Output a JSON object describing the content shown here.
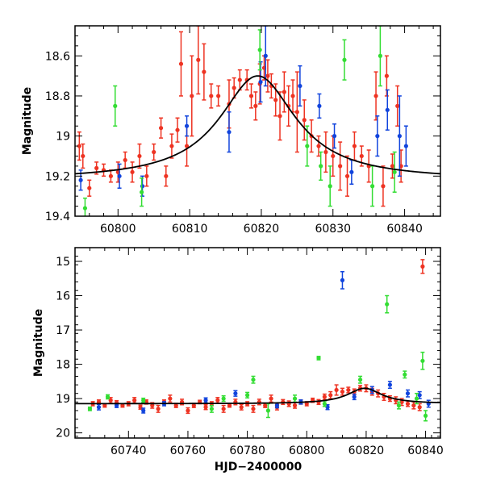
{
  "chart_data": [
    {
      "type": "scatter",
      "panel": "top",
      "xlabel": "",
      "ylabel": "Magnitude",
      "xlim": [
        60794,
        60845
      ],
      "ylim": [
        19.4,
        18.45
      ],
      "y_inverted": true,
      "xticks": [
        60800,
        60810,
        60820,
        60830,
        60840
      ],
      "yticks": [
        18.6,
        18.8,
        19,
        19.2,
        19.4
      ],
      "ytick_labels": [
        "18.6",
        "18.8",
        "19",
        "19.2",
        "19.4"
      ],
      "model_curve": {
        "type": "lorentzian",
        "peak_x": 60819.5,
        "peak_mag": 18.7,
        "baseline_mag": 19.22,
        "width_days": 6.5,
        "color": "#000000"
      },
      "series": [
        {
          "color": "#ee3322",
          "points": [
            [
              60794.6,
              19.05,
              0.07
            ],
            [
              60795.1,
              19.1,
              0.06
            ],
            [
              60796.0,
              19.26,
              0.04
            ],
            [
              60797.0,
              19.16,
              0.03
            ],
            [
              60798.0,
              19.17,
              0.03
            ],
            [
              60799.0,
              19.2,
              0.03
            ],
            [
              60800.0,
              19.18,
              0.05
            ],
            [
              60801.0,
              19.12,
              0.04
            ],
            [
              60802.0,
              19.18,
              0.05
            ],
            [
              60803.0,
              19.1,
              0.06
            ],
            [
              60804.0,
              19.2,
              0.05
            ],
            [
              60805.0,
              19.08,
              0.04
            ],
            [
              60806.0,
              18.96,
              0.05
            ],
            [
              60806.7,
              19.2,
              0.05
            ],
            [
              60807.5,
              19.05,
              0.06
            ],
            [
              60808.3,
              18.97,
              0.06
            ],
            [
              60808.8,
              18.64,
              0.16
            ],
            [
              60809.6,
              19.05,
              0.1
            ],
            [
              60810.3,
              18.8,
              0.2
            ],
            [
              60811.2,
              18.62,
              0.17
            ],
            [
              60812.0,
              18.68,
              0.14
            ],
            [
              60813.0,
              18.8,
              0.06
            ],
            [
              60814.0,
              18.8,
              0.05
            ],
            [
              60815.5,
              18.84,
              0.12
            ],
            [
              60816.2,
              18.76,
              0.05
            ],
            [
              60817.0,
              18.72,
              0.05
            ],
            [
              60818.0,
              18.72,
              0.05
            ],
            [
              60818.6,
              18.8,
              0.06
            ],
            [
              60819.2,
              18.85,
              0.07
            ],
            [
              60819.8,
              18.74,
              0.1
            ],
            [
              60820.4,
              18.66,
              0.06
            ],
            [
              60820.9,
              18.7,
              0.08
            ],
            [
              60821.4,
              18.75,
              0.06
            ],
            [
              60822.0,
              18.82,
              0.08
            ],
            [
              60822.6,
              18.9,
              0.12
            ],
            [
              60823.2,
              18.78,
              0.1
            ],
            [
              60823.8,
              18.85,
              0.1
            ],
            [
              60824.4,
              18.8,
              0.08
            ],
            [
              60825.0,
              18.88,
              0.2
            ],
            [
              60826.0,
              18.92,
              0.1
            ],
            [
              60827.0,
              19.0,
              0.08
            ],
            [
              60828.0,
              19.05,
              0.05
            ],
            [
              60829.0,
              19.08,
              0.1
            ],
            [
              60830.0,
              19.1,
              0.1
            ],
            [
              60831.0,
              19.15,
              0.12
            ],
            [
              60832.0,
              19.2,
              0.1
            ],
            [
              60833.0,
              19.05,
              0.07
            ],
            [
              60834.0,
              19.1,
              0.05
            ],
            [
              60835.0,
              19.15,
              0.08
            ],
            [
              60836.0,
              18.8,
              0.12
            ],
            [
              60837.0,
              19.25,
              0.1
            ],
            [
              60837.5,
              18.7,
              0.1
            ],
            [
              60838.3,
              19.15,
              0.06
            ],
            [
              60839.0,
              18.85,
              0.1
            ],
            [
              60839.5,
              19.15,
              0.08
            ]
          ]
        },
        {
          "color": "#1144dd",
          "points": [
            [
              60794.8,
              19.22,
              0.05
            ],
            [
              60800.2,
              19.2,
              0.06
            ],
            [
              60803.4,
              19.25,
              0.05
            ],
            [
              60809.6,
              18.95,
              0.05
            ],
            [
              60815.5,
              18.98,
              0.1
            ],
            [
              60819.9,
              18.73,
              0.1
            ],
            [
              60820.6,
              18.6,
              0.15
            ],
            [
              60825.4,
              18.75,
              0.1
            ],
            [
              60828.1,
              18.85,
              0.06
            ],
            [
              60830.2,
              19.0,
              0.06
            ],
            [
              60832.6,
              19.18,
              0.06
            ],
            [
              60836.2,
              19.0,
              0.1
            ],
            [
              60837.6,
              18.87,
              0.1
            ],
            [
              60839.3,
              19.0,
              0.2
            ],
            [
              60840.2,
              19.05,
              0.1
            ]
          ]
        },
        {
          "color": "#33dd33",
          "points": [
            [
              60795.4,
              19.36,
              0.05
            ],
            [
              60799.6,
              18.85,
              0.1
            ],
            [
              60803.3,
              19.28,
              0.07
            ],
            [
              60819.8,
              18.57,
              0.1
            ],
            [
              60826.4,
              19.05,
              0.1
            ],
            [
              60828.3,
              19.15,
              0.07
            ],
            [
              60829.6,
              19.25,
              0.1
            ],
            [
              60831.6,
              18.62,
              0.1
            ],
            [
              60835.5,
              19.25,
              0.1
            ],
            [
              60836.6,
              18.6,
              0.15
            ],
            [
              60838.6,
              19.18,
              0.1
            ]
          ]
        }
      ]
    },
    {
      "type": "scatter",
      "panel": "bottom",
      "xlabel": "HJD−2400000",
      "ylabel": "Magnitude",
      "xlim": [
        60722,
        60845
      ],
      "ylim": [
        20.15,
        14.6
      ],
      "y_inverted": true,
      "xticks": [
        60740,
        60760,
        60780,
        60800,
        60820,
        60840
      ],
      "yticks": [
        15,
        16,
        17,
        18,
        19,
        20
      ],
      "ytick_labels": [
        "15",
        "16",
        "17",
        "18",
        "19",
        "20"
      ],
      "model_curve": {
        "type": "lorentzian",
        "peak_x": 60819.5,
        "peak_mag": 18.7,
        "baseline_mag": 19.15,
        "width_days": 7,
        "color": "#000000"
      },
      "series": [
        {
          "color": "#ee3322",
          "points": [
            [
              60728,
              19.15,
              0.06
            ],
            [
              60730,
              19.1,
              0.06
            ],
            [
              60732,
              19.2,
              0.05
            ],
            [
              60734,
              19.05,
              0.08
            ],
            [
              60736,
              19.12,
              0.06
            ],
            [
              60738,
              19.2,
              0.05
            ],
            [
              60740,
              19.15,
              0.06
            ],
            [
              60742,
              19.05,
              0.08
            ],
            [
              60744,
              19.25,
              0.06
            ],
            [
              60746,
              19.1,
              0.06
            ],
            [
              60748,
              19.2,
              0.08
            ],
            [
              60750,
              19.3,
              0.1
            ],
            [
              60752,
              19.1,
              0.06
            ],
            [
              60754,
              19.0,
              0.1
            ],
            [
              60756,
              19.2,
              0.06
            ],
            [
              60758,
              19.1,
              0.08
            ],
            [
              60760,
              19.35,
              0.08
            ],
            [
              60762,
              19.2,
              0.06
            ],
            [
              60764,
              19.1,
              0.05
            ],
            [
              60766,
              19.25,
              0.07
            ],
            [
              60768,
              19.15,
              0.06
            ],
            [
              60770,
              19.05,
              0.08
            ],
            [
              60772,
              19.3,
              0.1
            ],
            [
              60774,
              19.2,
              0.05
            ],
            [
              60776,
              19.1,
              0.08
            ],
            [
              60778,
              19.25,
              0.08
            ],
            [
              60780,
              19.15,
              0.06
            ],
            [
              60782,
              19.3,
              0.1
            ],
            [
              60784,
              19.1,
              0.08
            ],
            [
              60786,
              19.2,
              0.06
            ],
            [
              60788,
              19.0,
              0.1
            ],
            [
              60790,
              19.25,
              0.08
            ],
            [
              60792,
              19.1,
              0.07
            ],
            [
              60794,
              19.15,
              0.08
            ],
            [
              60796,
              19.2,
              0.08
            ],
            [
              60798,
              19.1,
              0.06
            ],
            [
              60800,
              19.15,
              0.06
            ],
            [
              60802,
              19.05,
              0.06
            ],
            [
              60804,
              19.1,
              0.07
            ],
            [
              60806,
              18.95,
              0.08
            ],
            [
              60808,
              18.9,
              0.1
            ],
            [
              60810,
              18.75,
              0.15
            ],
            [
              60812,
              18.8,
              0.1
            ],
            [
              60814,
              18.75,
              0.08
            ],
            [
              60816,
              18.8,
              0.08
            ],
            [
              60818,
              18.7,
              0.08
            ],
            [
              60820,
              18.7,
              0.1
            ],
            [
              60822,
              18.8,
              0.1
            ],
            [
              60824,
              18.85,
              0.1
            ],
            [
              60826,
              18.95,
              0.1
            ],
            [
              60828,
              19.0,
              0.08
            ],
            [
              60830,
              19.05,
              0.1
            ],
            [
              60832,
              19.1,
              0.1
            ],
            [
              60834,
              19.15,
              0.08
            ],
            [
              60836,
              19.2,
              0.1
            ],
            [
              60838,
              19.25,
              0.1
            ],
            [
              60839,
              15.15,
              0.2
            ]
          ]
        },
        {
          "color": "#1144dd",
          "points": [
            [
              60730,
              19.25,
              0.08
            ],
            [
              60736,
              19.2,
              0.06
            ],
            [
              60745,
              19.35,
              0.07
            ],
            [
              60752,
              19.15,
              0.06
            ],
            [
              60766,
              19.05,
              0.07
            ],
            [
              60776,
              18.85,
              0.08
            ],
            [
              60790,
              19.2,
              0.07
            ],
            [
              60798,
              19.1,
              0.06
            ],
            [
              60807,
              19.25,
              0.07
            ],
            [
              60812,
              15.55,
              0.25
            ],
            [
              60816,
              18.95,
              0.08
            ],
            [
              60822,
              18.75,
              0.1
            ],
            [
              60828,
              18.6,
              0.1
            ],
            [
              60834,
              18.85,
              0.1
            ],
            [
              60838,
              18.9,
              0.1
            ],
            [
              60841,
              19.15,
              0.1
            ]
          ]
        },
        {
          "color": "#33dd33",
          "points": [
            [
              60727,
              19.3,
              0.05
            ],
            [
              60733,
              18.95,
              0.06
            ],
            [
              60745,
              19.05,
              0.06
            ],
            [
              60768,
              19.3,
              0.1
            ],
            [
              60772,
              19.0,
              0.08
            ],
            [
              60780,
              18.9,
              0.08
            ],
            [
              60782,
              18.45,
              0.1
            ],
            [
              60787,
              19.35,
              0.2
            ],
            [
              60796,
              19.0,
              0.1
            ],
            [
              60804,
              17.82,
              0.05
            ],
            [
              60806,
              19.15,
              0.08
            ],
            [
              60818,
              18.45,
              0.1
            ],
            [
              60827,
              16.25,
              0.25
            ],
            [
              60831,
              19.2,
              0.1
            ],
            [
              60833,
              18.3,
              0.1
            ],
            [
              60837,
              19.0,
              0.15
            ],
            [
              60839,
              17.9,
              0.25
            ],
            [
              60840,
              19.5,
              0.15
            ]
          ]
        }
      ]
    }
  ]
}
